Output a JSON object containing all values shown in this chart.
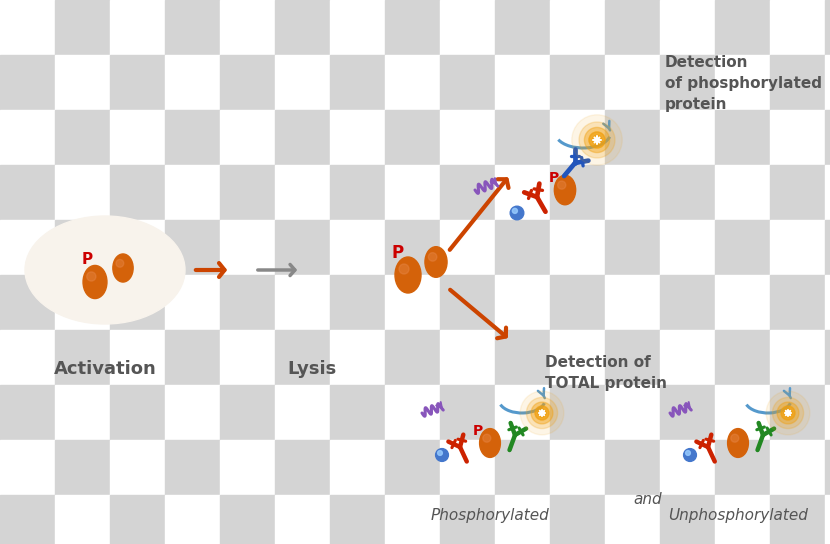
{
  "bg_color1": "#ffffff",
  "bg_color2": "#d4d4d4",
  "checker_size": 55,
  "cell_fill": "#f8f3ec",
  "cell_border": "#b8b8b8",
  "protein_color": "#d4620a",
  "p_color": "#cc0000",
  "arrow_orange": "#cc4400",
  "arrow_gray": "#888888",
  "ab_red": "#cc2200",
  "ab_blue": "#2255bb",
  "ab_green": "#228822",
  "glow_color": "#f0a010",
  "squiggle_color": "#8855bb",
  "arc_color": "#5599cc",
  "blue_ball_color": "#4477cc",
  "text_color": "#555555",
  "label_activation": "Activation",
  "label_lysis": "Lysis",
  "label_det_phos": "Detection\nof phosphorylated\nprotein",
  "label_det_total": "Detection of\nTOTAL protein",
  "label_phos": "Phosphorylated",
  "label_and": "and",
  "label_unphos": "Unphosphorylated",
  "figw": 8.3,
  "figh": 5.44,
  "dpi": 100
}
